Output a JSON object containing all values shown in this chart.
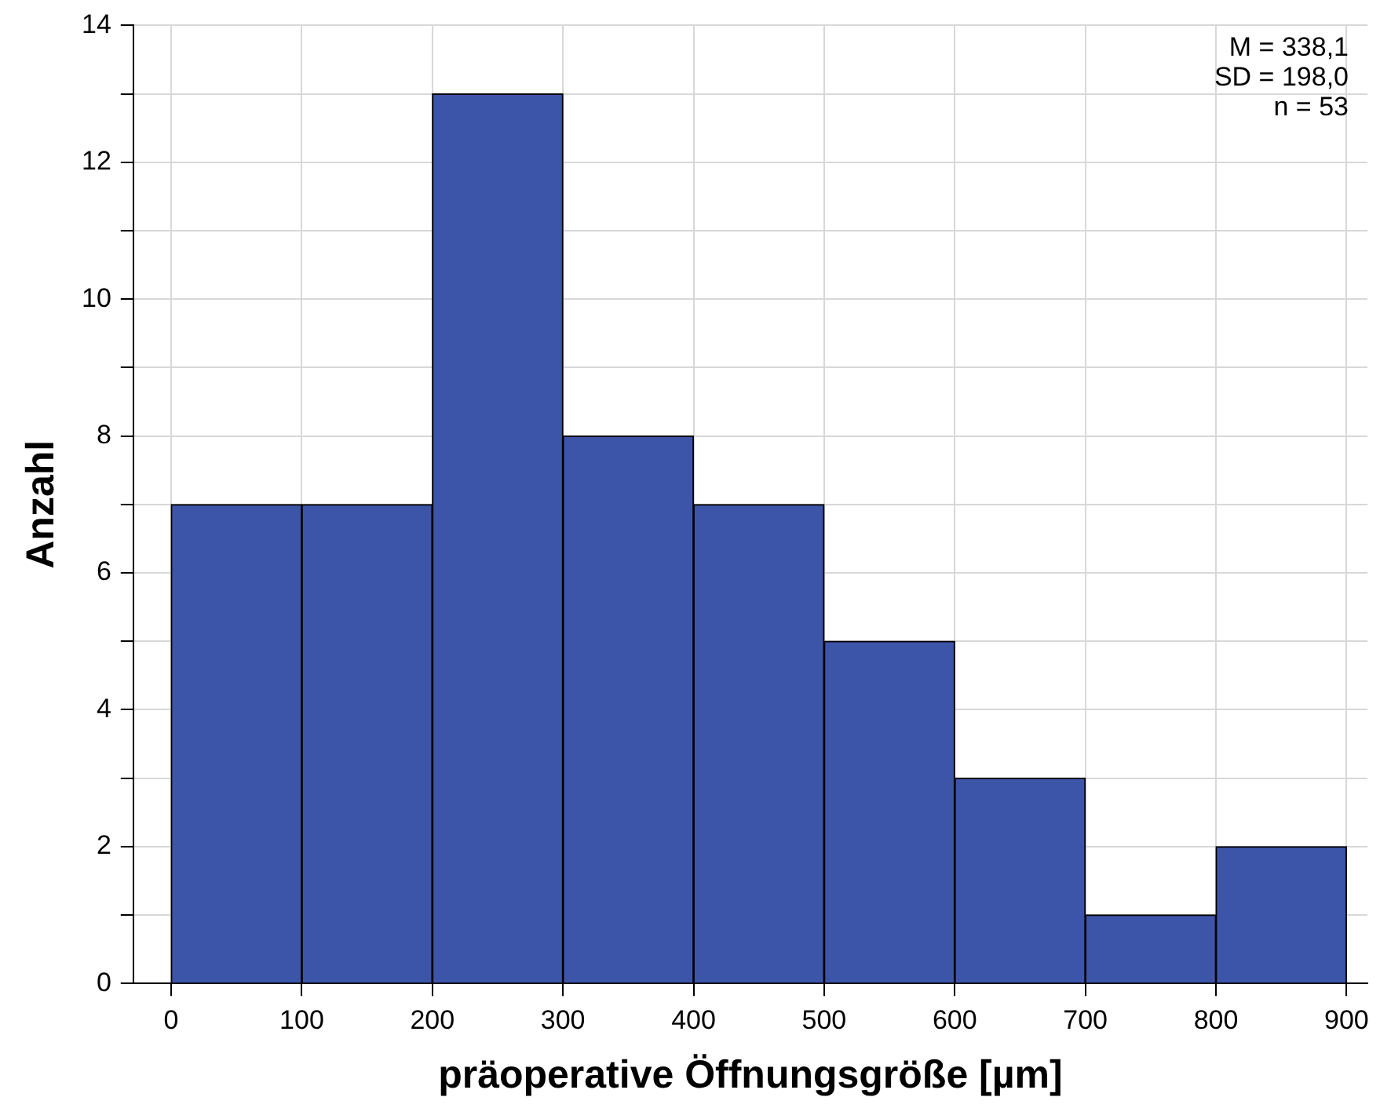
{
  "chart_data": {
    "type": "histogram",
    "xlabel": "präoperative Öffnungsgröße [µm]",
    "ylabel": "Anzahl",
    "bins": [
      0,
      100,
      200,
      300,
      400,
      500,
      600,
      700,
      800,
      900
    ],
    "values": [
      7,
      7,
      13,
      8,
      7,
      5,
      3,
      1,
      2
    ],
    "color": "#3d55a8",
    "xlim": [
      -29,
      916
    ],
    "xticks": [
      0,
      100,
      200,
      300,
      400,
      500,
      600,
      700,
      800,
      900
    ],
    "ylim": [
      0,
      14
    ],
    "yticks": [
      0,
      {
        "value": 1,
        "label": null
      },
      2,
      {
        "value": 3,
        "label": null
      },
      4,
      {
        "value": 5,
        "label": null
      },
      6,
      {
        "value": 7,
        "label": null
      },
      8,
      {
        "value": 9,
        "label": null
      },
      10,
      {
        "value": 11,
        "label": null
      },
      12,
      {
        "value": 13,
        "label": null
      },
      14
    ],
    "grid": true,
    "annotations": [
      "M = 338,1",
      "SD = 198,0",
      "n = 53"
    ]
  }
}
